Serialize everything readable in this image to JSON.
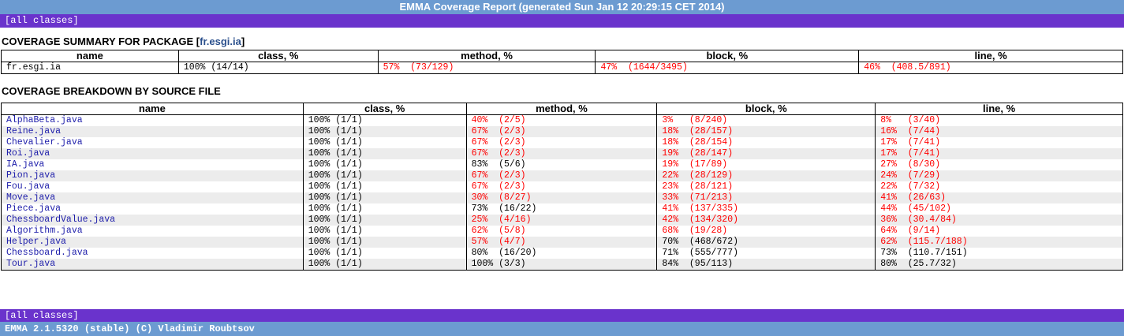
{
  "header": {
    "title": "EMMA Coverage Report (generated Sun Jan 12 20:29:15 CET 2014)"
  },
  "nav": {
    "all_classes": "[all classes]"
  },
  "summary": {
    "heading_prefix": "COVERAGE SUMMARY FOR PACKAGE [",
    "package": "fr.esgi.ia",
    "heading_suffix": "]",
    "columns": [
      "name",
      "class, %",
      "method, %",
      "block, %",
      "line, %"
    ],
    "row": {
      "name": "fr.esgi.ia",
      "class": "100% (14/14)",
      "method": "57%  (73/129)",
      "block": "47%  (1644/3495)",
      "line": "46%  (408.5/891)"
    }
  },
  "breakdown": {
    "heading": "COVERAGE BREAKDOWN BY SOURCE FILE",
    "columns": [
      "name",
      "class, %",
      "method, %",
      "block, %",
      "line, %"
    ],
    "rows": [
      {
        "name": "AlphaBeta.java",
        "class": "100% (1/1)",
        "method": "40%  (2/5)",
        "block": "3%   (8/240)",
        "line": "8%   (3/40)"
      },
      {
        "name": "Reine.java",
        "class": "100% (1/1)",
        "method": "67%  (2/3)",
        "block": "18%  (28/157)",
        "line": "16%  (7/44)"
      },
      {
        "name": "Chevalier.java",
        "class": "100% (1/1)",
        "method": "67%  (2/3)",
        "block": "18%  (28/154)",
        "line": "17%  (7/41)"
      },
      {
        "name": "Roi.java",
        "class": "100% (1/1)",
        "method": "67%  (2/3)",
        "block": "19%  (28/147)",
        "line": "17%  (7/41)"
      },
      {
        "name": "IA.java",
        "class": "100% (1/1)",
        "method": "83%  (5/6)",
        "block": "19%  (17/89)",
        "line": "27%  (8/30)"
      },
      {
        "name": "Pion.java",
        "class": "100% (1/1)",
        "method": "67%  (2/3)",
        "block": "22%  (28/129)",
        "line": "24%  (7/29)"
      },
      {
        "name": "Fou.java",
        "class": "100% (1/1)",
        "method": "67%  (2/3)",
        "block": "23%  (28/121)",
        "line": "22%  (7/32)"
      },
      {
        "name": "Move.java",
        "class": "100% (1/1)",
        "method": "30%  (8/27)",
        "block": "33%  (71/213)",
        "line": "41%  (26/63)"
      },
      {
        "name": "Piece.java",
        "class": "100% (1/1)",
        "method": "73%  (16/22)",
        "block": "41%  (137/335)",
        "line": "44%  (45/102)"
      },
      {
        "name": "ChessboardValue.java",
        "class": "100% (1/1)",
        "method": "25%  (4/16)",
        "block": "42%  (134/320)",
        "line": "36%  (30.4/84)"
      },
      {
        "name": "Algorithm.java",
        "class": "100% (1/1)",
        "method": "62%  (5/8)",
        "block": "68%  (19/28)",
        "line": "64%  (9/14)"
      },
      {
        "name": "Helper.java",
        "class": "100% (1/1)",
        "method": "57%  (4/7)",
        "block": "70%  (468/672)",
        "line": "62%  (115.7/188)"
      },
      {
        "name": "Chessboard.java",
        "class": "100% (1/1)",
        "method": "80%  (16/20)",
        "block": "71%  (555/777)",
        "line": "73%  (110.7/151)"
      },
      {
        "name": "Tour.java",
        "class": "100% (1/1)",
        "method": "100% (3/3)",
        "block": "84%  (95/113)",
        "line": "80%  (25.7/32)"
      }
    ]
  },
  "footer": {
    "credit": "EMMA 2.1.5320 (stable) (C) Vladimir Roubtsov"
  },
  "colors": {
    "low_coverage": "#ff0000",
    "header_bar": "#6c9bd1",
    "nav_bar": "#6a33cc",
    "link": "#1d1daa"
  }
}
